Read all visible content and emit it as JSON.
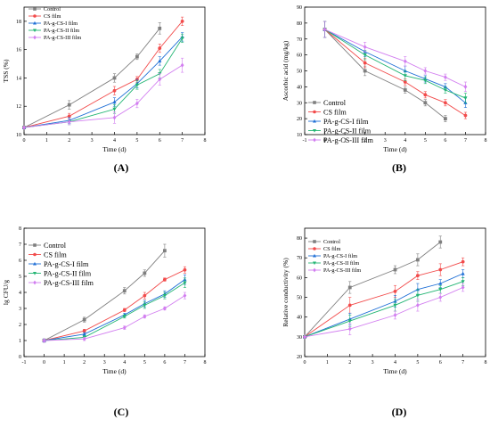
{
  "colors": {
    "Control": "#7f7f7f",
    "CS film": "#f24b4b",
    "PA-g-CS-I film": "#1f6fd6",
    "PA-g-CS-II film": "#22b573",
    "PA-g-CS-III film": "#d27ef0"
  },
  "chart_data": [
    {
      "panel": "(A)",
      "type": "line",
      "xlabel": "Time (d)",
      "ylabel": "TSS (%)",
      "xlim": [
        0,
        8
      ],
      "ylim": [
        10,
        19
      ],
      "xticks": [
        0,
        1,
        2,
        3,
        4,
        5,
        6,
        7,
        8
      ],
      "yticks": [
        10,
        12,
        14,
        16,
        18
      ],
      "legend_position": "top-left",
      "series": [
        {
          "name": "Control",
          "marker": "square",
          "x": [
            0,
            2,
            4,
            5,
            6
          ],
          "y": [
            10.5,
            12.1,
            14.0,
            15.5,
            17.5
          ],
          "err": [
            0,
            0.3,
            0.3,
            0.2,
            0.4
          ]
        },
        {
          "name": "CS film",
          "marker": "circle",
          "x": [
            0,
            2,
            4,
            5,
            6,
            7
          ],
          "y": [
            10.5,
            11.3,
            13.1,
            13.9,
            16.1,
            18.0
          ],
          "err": [
            0,
            0.2,
            0.3,
            0.2,
            0.3,
            0.3
          ]
        },
        {
          "name": "PA-g-CS-I film",
          "marker": "triangle-up",
          "x": [
            0,
            2,
            4,
            5,
            6,
            7
          ],
          "y": [
            10.5,
            11.0,
            12.3,
            13.6,
            15.2,
            16.9
          ],
          "err": [
            0,
            0.2,
            0.3,
            0.3,
            0.3,
            0.3
          ]
        },
        {
          "name": "PA-g-CS-II film",
          "marker": "triangle-down",
          "x": [
            0,
            2,
            4,
            5,
            6,
            7
          ],
          "y": [
            10.5,
            10.9,
            11.8,
            13.5,
            14.3,
            16.8
          ],
          "err": [
            0,
            0.2,
            0.3,
            0.3,
            0.3,
            0.3
          ]
        },
        {
          "name": "PA-g-CS-III film",
          "marker": "diamond",
          "x": [
            0,
            2,
            4,
            5,
            6,
            7
          ],
          "y": [
            10.5,
            10.9,
            11.2,
            12.2,
            13.9,
            14.9
          ],
          "err": [
            0,
            0.2,
            0.4,
            0.3,
            0.4,
            0.5
          ]
        }
      ]
    },
    {
      "panel": "(B)",
      "type": "line",
      "xlabel": "Time (d)",
      "ylabel": "Ascorbic acid (mg/kg)",
      "xlim": [
        -1,
        8
      ],
      "ylim": [
        10,
        90
      ],
      "xticks": [
        -1,
        0,
        1,
        2,
        3,
        4,
        5,
        6,
        7,
        8
      ],
      "yticks": [
        10,
        20,
        30,
        40,
        50,
        60,
        70,
        80,
        90
      ],
      "legend_position": "bottom-left",
      "series": [
        {
          "name": "Control",
          "marker": "square",
          "x": [
            0,
            2,
            4,
            5,
            6
          ],
          "y": [
            76,
            50,
            38,
            30,
            20
          ],
          "err": [
            5,
            3,
            2,
            2,
            2
          ]
        },
        {
          "name": "CS film",
          "marker": "circle",
          "x": [
            0,
            2,
            4,
            5,
            6,
            7
          ],
          "y": [
            76,
            55,
            43,
            35,
            30,
            22
          ],
          "err": [
            5,
            3,
            2,
            2,
            2,
            2
          ]
        },
        {
          "name": "PA-g-CS-I film",
          "marker": "triangle-up",
          "x": [
            0,
            2,
            4,
            5,
            6,
            7
          ],
          "y": [
            76,
            62,
            50,
            45,
            40,
            30
          ],
          "err": [
            5,
            3,
            3,
            2,
            2,
            3
          ]
        },
        {
          "name": "PA-g-CS-II film",
          "marker": "triangle-down",
          "x": [
            0,
            2,
            4,
            5,
            6,
            7
          ],
          "y": [
            76,
            60,
            47,
            44,
            38,
            33
          ],
          "err": [
            5,
            3,
            3,
            2,
            2,
            3
          ]
        },
        {
          "name": "PA-g-CS-III film",
          "marker": "diamond",
          "x": [
            0,
            2,
            4,
            5,
            6,
            7
          ],
          "y": [
            76,
            65,
            56,
            50,
            46,
            40
          ],
          "err": [
            5,
            3,
            3,
            2,
            2,
            3
          ]
        }
      ]
    },
    {
      "panel": "(C)",
      "type": "line",
      "xlabel": "Time (d)",
      "ylabel": "lg CFU/g",
      "xlim": [
        -1,
        8
      ],
      "ylim": [
        0,
        8
      ],
      "xticks": [
        -1,
        0,
        1,
        2,
        3,
        4,
        5,
        6,
        7,
        8
      ],
      "yticks": [
        0,
        1,
        2,
        3,
        4,
        5,
        6,
        7,
        8
      ],
      "legend_position": "top-left",
      "series": [
        {
          "name": "Control",
          "marker": "square",
          "x": [
            0,
            2,
            4,
            5,
            6
          ],
          "y": [
            1.0,
            2.3,
            4.1,
            5.2,
            6.6
          ],
          "err": [
            0.1,
            0.15,
            0.2,
            0.2,
            0.4
          ]
        },
        {
          "name": "CS film",
          "marker": "circle",
          "x": [
            0,
            2,
            4,
            5,
            6,
            7
          ],
          "y": [
            1.0,
            1.6,
            2.9,
            3.8,
            4.8,
            5.4
          ],
          "err": [
            0.1,
            0.1,
            0.1,
            0.2,
            0.1,
            0.2
          ]
        },
        {
          "name": "PA-g-CS-I film",
          "marker": "triangle-up",
          "x": [
            0,
            2,
            4,
            5,
            6,
            7
          ],
          "y": [
            1.0,
            1.4,
            2.6,
            3.3,
            3.9,
            4.8
          ],
          "err": [
            0.1,
            0.1,
            0.1,
            0.2,
            0.2,
            0.3
          ]
        },
        {
          "name": "PA-g-CS-II film",
          "marker": "triangle-down",
          "x": [
            0,
            2,
            4,
            5,
            6,
            7
          ],
          "y": [
            1.0,
            1.2,
            2.5,
            3.2,
            3.8,
            4.6
          ],
          "err": [
            0.1,
            0.1,
            0.1,
            0.2,
            0.2,
            0.3
          ]
        },
        {
          "name": "PA-g-CS-III film",
          "marker": "diamond",
          "x": [
            0,
            2,
            4,
            5,
            6,
            7
          ],
          "y": [
            1.0,
            1.1,
            1.8,
            2.5,
            3.0,
            3.8
          ],
          "err": [
            0.1,
            0.1,
            0.1,
            0.1,
            0.1,
            0.2
          ]
        }
      ]
    },
    {
      "panel": "(D)",
      "type": "line",
      "xlabel": "Time (d)",
      "ylabel": "Relative conductivity (%)",
      "xlim": [
        0,
        8
      ],
      "ylim": [
        20,
        85
      ],
      "xticks": [
        0,
        1,
        2,
        3,
        4,
        5,
        6,
        7,
        8
      ],
      "yticks": [
        20,
        30,
        40,
        50,
        60,
        70,
        80
      ],
      "legend_position": "top-left",
      "series": [
        {
          "name": "Control",
          "marker": "square",
          "x": [
            0,
            2,
            4,
            5,
            6
          ],
          "y": [
            30,
            55,
            64,
            69,
            78
          ],
          "err": [
            0,
            3,
            2,
            3,
            3
          ]
        },
        {
          "name": "CS film",
          "marker": "circle",
          "x": [
            0,
            2,
            4,
            5,
            6,
            7
          ],
          "y": [
            30,
            46,
            53,
            61,
            64,
            68
          ],
          "err": [
            0,
            4,
            3,
            2,
            3,
            2
          ]
        },
        {
          "name": "PA-g-CS-I film",
          "marker": "triangle-up",
          "x": [
            0,
            2,
            4,
            5,
            6,
            7
          ],
          "y": [
            30,
            39,
            48,
            54,
            57,
            62
          ],
          "err": [
            0,
            3,
            3,
            3,
            2,
            2
          ]
        },
        {
          "name": "PA-g-CS-II film",
          "marker": "triangle-down",
          "x": [
            0,
            2,
            4,
            5,
            6,
            7
          ],
          "y": [
            30,
            38,
            46,
            51,
            54,
            58
          ],
          "err": [
            0,
            3,
            3,
            3,
            2,
            2
          ]
        },
        {
          "name": "PA-g-CS-III film",
          "marker": "diamond",
          "x": [
            0,
            2,
            4,
            5,
            6,
            7
          ],
          "y": [
            30,
            34,
            41,
            46,
            50,
            55
          ],
          "err": [
            0,
            3,
            2,
            3,
            2,
            2
          ]
        }
      ]
    }
  ]
}
